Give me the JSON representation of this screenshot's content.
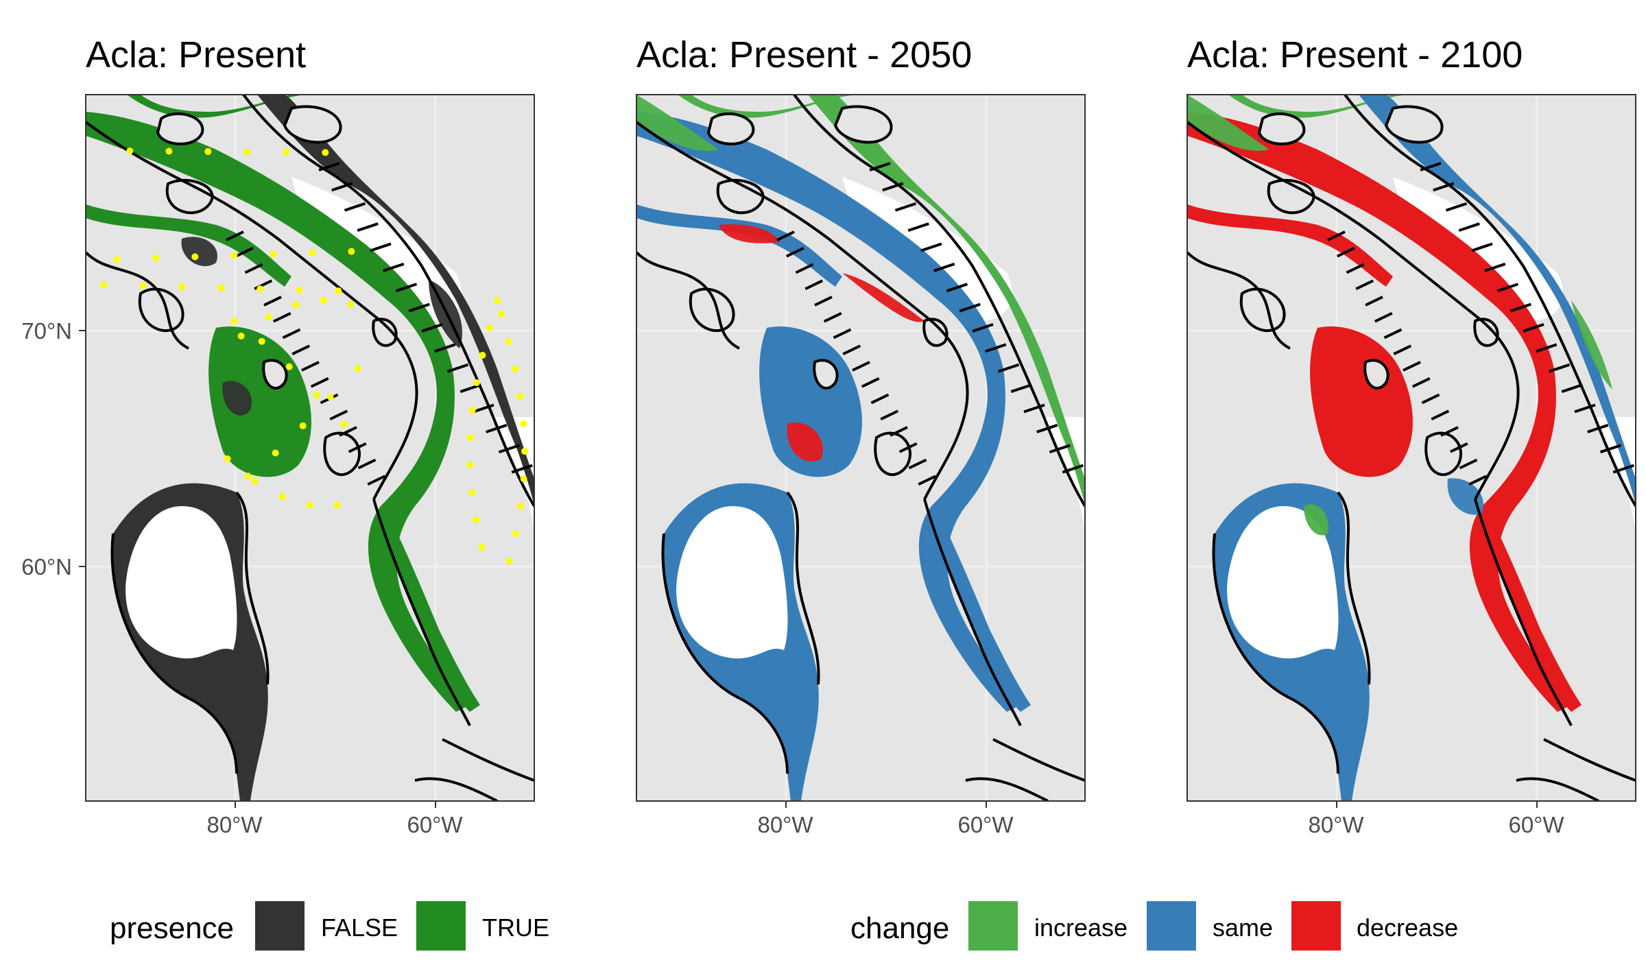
{
  "figure": {
    "panels": [
      {
        "title": "Acla: Present",
        "x_ticks": [
          "80°W",
          "60°W"
        ],
        "y_ticks": [
          "70°N",
          "60°N"
        ],
        "fill_scale": "presence",
        "occurrence_color": "#ffff00"
      },
      {
        "title": "Acla: Present - 2050",
        "x_ticks": [
          "80°W",
          "60°W"
        ],
        "y_ticks": [],
        "fill_scale": "change"
      },
      {
        "title": "Acla: Present - 2100",
        "x_ticks": [
          "80°W",
          "60°W"
        ],
        "y_ticks": [],
        "fill_scale": "change"
      }
    ],
    "legends": {
      "presence": {
        "title": "presence",
        "items": [
          {
            "label": "FALSE",
            "color": "#333333"
          },
          {
            "label": "TRUE",
            "color": "#228b22"
          }
        ]
      },
      "change": {
        "title": "change",
        "items": [
          {
            "label": "increase",
            "color": "#4daf4a"
          },
          {
            "label": "same",
            "color": "#377eb8"
          },
          {
            "label": "decrease",
            "color": "#e41a1c"
          }
        ]
      }
    },
    "colors": {
      "land": "#e5e5e5",
      "water_unsuitable": "#ffffff",
      "coastline": "#000000",
      "grid": "#f0f0f0"
    }
  },
  "chart_data": [
    {
      "type": "map",
      "title": "Acla: Present",
      "xlim": [
        -95,
        -50
      ],
      "ylim": [
        51,
        80
      ],
      "x_ticks": [
        -80,
        -60
      ],
      "y_ticks": [
        70,
        60
      ],
      "fill": "presence",
      "categories": [
        "FALSE",
        "TRUE"
      ]
    },
    {
      "type": "map",
      "title": "Acla: Present - 2050",
      "xlim": [
        -95,
        -50
      ],
      "ylim": [
        51,
        80
      ],
      "x_ticks": [
        -80,
        -60
      ],
      "fill": "change",
      "categories": [
        "increase",
        "same",
        "decrease"
      ]
    },
    {
      "type": "map",
      "title": "Acla: Present - 2100",
      "xlim": [
        -95,
        -50
      ],
      "ylim": [
        51,
        80
      ],
      "x_ticks": [
        -80,
        -60
      ],
      "fill": "change",
      "categories": [
        "increase",
        "same",
        "decrease"
      ]
    }
  ]
}
